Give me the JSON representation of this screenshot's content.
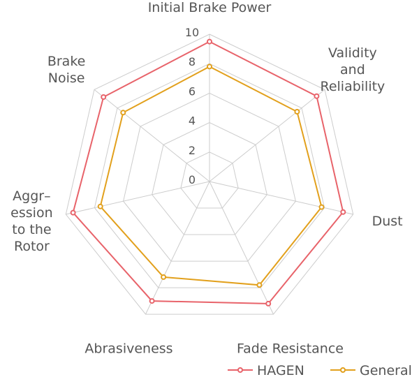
{
  "chart_data": {
    "type": "radar",
    "axes": [
      [
        "Initial Brake Power"
      ],
      [
        "Validity",
        "and",
        "Reliability"
      ],
      [
        "Dust"
      ],
      [
        "Fade Resistance"
      ],
      [
        "Abrasiveness"
      ],
      [
        "Aggr–",
        "ession",
        "to the",
        "Rotor"
      ],
      [
        "Brake",
        "Noise"
      ]
    ],
    "ticks": [
      "0",
      "2",
      "4",
      "6",
      "8",
      "10"
    ],
    "range": [
      0,
      10
    ],
    "grid": true,
    "legend_position": "bottom-right",
    "series": [
      {
        "name": "HAGEN",
        "color": "#e8636a",
        "values": [
          9.5,
          9.3,
          9.3,
          9.2,
          9.0,
          9.5,
          9.2
        ]
      },
      {
        "name": "General",
        "color": "#e2a01c",
        "values": [
          7.8,
          7.6,
          7.8,
          7.8,
          7.2,
          7.6,
          7.5
        ]
      }
    ]
  }
}
